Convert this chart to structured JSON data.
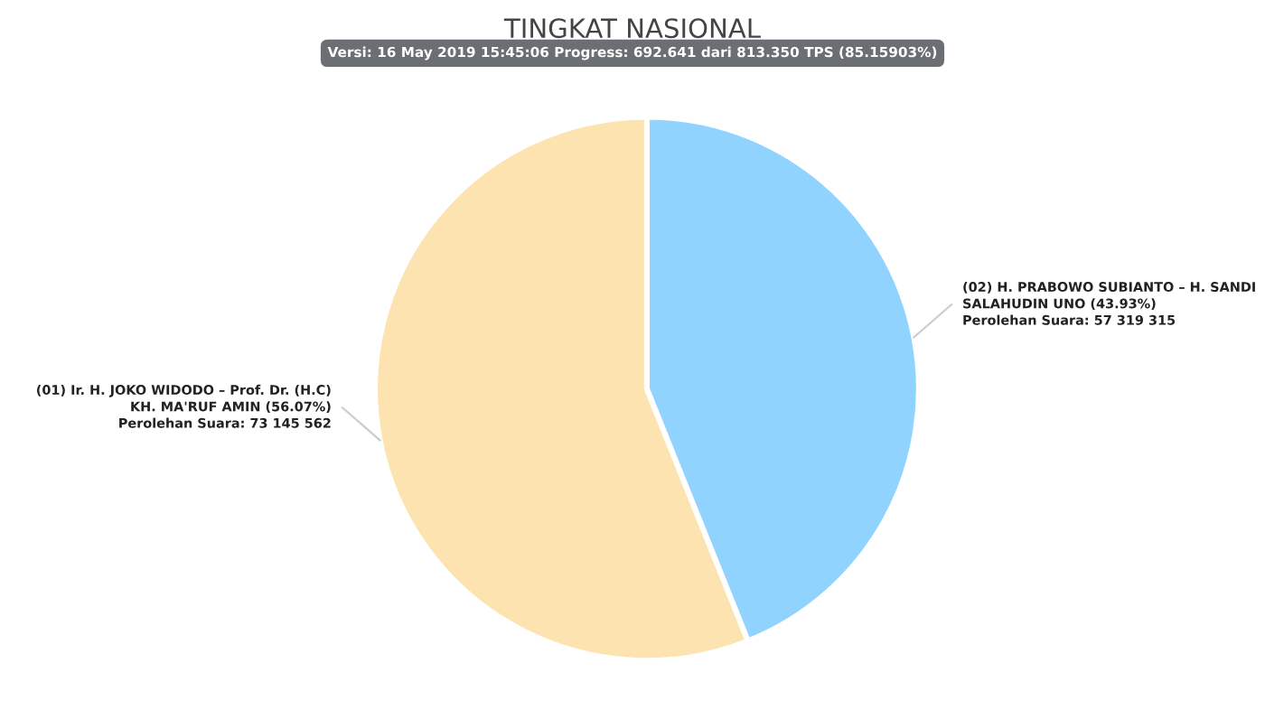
{
  "chart_data": {
    "type": "pie",
    "title": "TINGKAT NASIONAL",
    "subtitle": "Versi: 16 May 2019 15:45:06 Progress: 692.641 dari 813.350 TPS (85.15903%)",
    "categories": [
      "(01) Ir. H. JOKO WIDODO – Prof. Dr. (H.C)\nKH. MA'RUF AMIN (56.07%)",
      "(02) H. PRABOWO SUBIANTO – H. SANDI\nSALAHUDIN UNO (43.93%)"
    ],
    "values": [
      73145562,
      57319315
    ],
    "value_labels": [
      "Perolehan Suara: 73 145 562",
      "Perolehan Suara: 57 319 315"
    ],
    "colors": [
      "#fde3b0",
      "#8fd3fe"
    ],
    "legend": false
  }
}
